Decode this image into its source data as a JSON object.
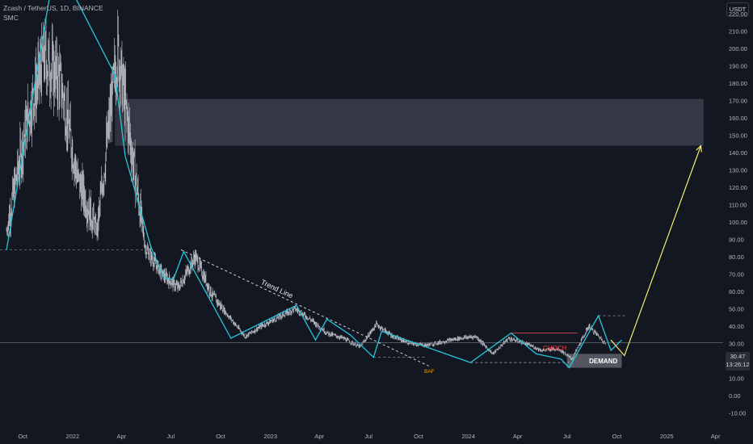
{
  "header": {
    "symbol_line": "Zcash / TetherUS, 1D, BINANCE",
    "indicator": "SMC"
  },
  "price_axis": {
    "currency": "USDT",
    "current_price": "30.47",
    "countdown": "13:26:12"
  },
  "annotations": {
    "trend_line": "Trend Line",
    "choch": "CHOCH",
    "demand": "DEMAND",
    "gap": "BAF"
  },
  "colors": {
    "background": "#131722",
    "candles": "#c9ccd3",
    "zigzag": "#26c6da",
    "projection": "#f5ef6b",
    "choch": "#e0434f",
    "zone": "#3a3e4a",
    "demand_zone": "#565a64",
    "gap_label": "#f59d00"
  },
  "chart_data": {
    "type": "candlestick",
    "title": "Zcash / TetherUS, 1D, BINANCE",
    "xlabel": "",
    "ylabel": "",
    "x_ticks": [
      "Oct",
      "2022",
      "Apr",
      "Jul",
      "Oct",
      "2023",
      "Apr",
      "Jul",
      "Oct",
      "2024",
      "Apr",
      "Jul",
      "Oct",
      "2025",
      "Apr"
    ],
    "y_ticks": [
      220,
      210,
      200,
      190,
      180,
      170,
      160,
      150,
      140,
      130,
      120,
      110,
      100,
      90,
      80,
      70,
      60,
      50,
      40,
      30,
      20,
      10,
      0,
      -10
    ],
    "ylim": [
      -14,
      228
    ],
    "approx_close_series": {
      "x": [
        "2021-09-01",
        "2021-10-10",
        "2021-11-10",
        "2021-12-10",
        "2022-01-10",
        "2022-02-15",
        "2022-03-25",
        "2022-04-20",
        "2022-05-15",
        "2022-06-15",
        "2022-07-15",
        "2022-08-15",
        "2022-09-15",
        "2022-10-15",
        "2022-11-15",
        "2022-12-15",
        "2023-01-15",
        "2023-02-15",
        "2023-03-15",
        "2023-04-15",
        "2023-05-15",
        "2023-06-15",
        "2023-07-15",
        "2023-08-15",
        "2023-09-15",
        "2023-10-15",
        "2023-11-15",
        "2023-12-15",
        "2024-01-15",
        "2024-02-15",
        "2024-03-15",
        "2024-04-15",
        "2024-05-15",
        "2024-06-15",
        "2024-07-10",
        "2024-08-10",
        "2024-09-10"
      ],
      "y": [
        95,
        160,
        195,
        180,
        125,
        95,
        200,
        140,
        85,
        70,
        62,
        80,
        58,
        46,
        34,
        40,
        45,
        50,
        44,
        36,
        33,
        28,
        41,
        34,
        30,
        29,
        31,
        33,
        34,
        24,
        33,
        30,
        26,
        27,
        21,
        40,
        30
      ]
    },
    "zigzag": {
      "x": [
        "2021-09-01",
        "2021-11-25",
        "2022-01-05",
        "2022-03-20",
        "2022-04-08",
        "2022-05-25",
        "2022-06-18",
        "2022-07-06",
        "2022-07-25",
        "2022-10-20",
        "2023-02-18",
        "2023-03-25",
        "2023-04-15",
        "2023-05-28",
        "2023-07-10",
        "2023-07-25",
        "2024-01-05",
        "2024-03-20",
        "2024-05-05",
        "2024-06-20",
        "2024-07-05",
        "2024-08-28",
        "2024-09-20",
        "2024-10-10"
      ],
      "y": [
        84,
        240,
        230,
        185,
        138,
        86,
        68,
        67,
        83,
        33,
        52,
        32,
        44,
        35,
        22,
        37,
        19,
        36,
        24,
        21,
        16,
        46,
        26,
        32
      ]
    },
    "zones": [
      {
        "label": "",
        "x_start": "2022-04-01",
        "x_end": "2025-03-10",
        "y_low": 144,
        "y_high": 171
      },
      {
        "label": "DEMAND",
        "x_start": "2024-07-15",
        "x_end": "2024-10-10",
        "y_low": 16,
        "y_high": 24
      }
    ],
    "trend_line": {
      "label": "Trend Line",
      "x": [
        "2022-07-20",
        "2023-10-20"
      ],
      "y": [
        84,
        17
      ]
    },
    "choch_level": {
      "label": "CHOCH",
      "x": [
        "2024-03-20",
        "2024-07-20"
      ],
      "y": 36
    },
    "projection": {
      "x": [
        "2024-09-20",
        "2024-10-15",
        "2025-03-05"
      ],
      "y": [
        32,
        23,
        144
      ]
    },
    "current_price": 30.47
  }
}
